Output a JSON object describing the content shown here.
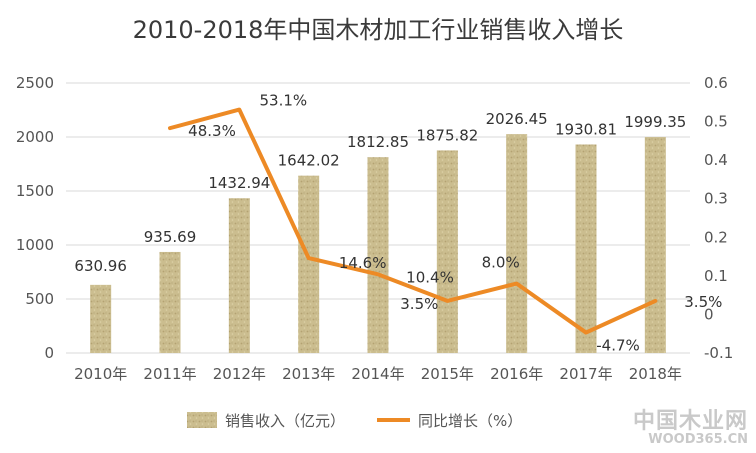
{
  "chart_data": {
    "type": "bar",
    "title": "2010-2018年中国木材加工行业销售收入增长",
    "categories": [
      "2010年",
      "2011年",
      "2012年",
      "2013年",
      "2014年",
      "2015年",
      "2016年",
      "2017年",
      "2018年"
    ],
    "series": [
      {
        "name": "销售收入（亿元）",
        "type": "bar",
        "axis": "left",
        "values": [
          630.96,
          935.69,
          1432.94,
          1642.02,
          1812.85,
          1875.82,
          2026.45,
          1930.81,
          1999.35
        ],
        "labels": [
          "630.96",
          "935.69",
          "1432.94",
          "1642.02",
          "1812.85",
          "1875.82",
          "2026.45",
          "1930.81",
          "1999.35"
        ],
        "color": "#c8b98a"
      },
      {
        "name": "同比增长（%）",
        "type": "line",
        "axis": "right",
        "values": [
          null,
          0.483,
          0.531,
          0.146,
          0.104,
          0.035,
          0.08,
          -0.047,
          0.035
        ],
        "labels": [
          "",
          "48.3%",
          "53.1%",
          "14.6%",
          "10.4%",
          "3.5%",
          "8.0%",
          "-4.7%",
          "3.5%"
        ],
        "color": "#ed8a25"
      }
    ],
    "y_left": {
      "min": 0,
      "max": 2500,
      "ticks": [
        "0",
        "500",
        "1000",
        "1500",
        "2000",
        "2500"
      ]
    },
    "y_right": {
      "min": -0.1,
      "max": 0.6,
      "ticks": [
        "-0.1",
        "0",
        "0.1",
        "0.2",
        "0.3",
        "0.4",
        "0.5",
        "0.6"
      ]
    },
    "grid": true,
    "legend": "bottom"
  },
  "watermark": {
    "line1": "中国木业网",
    "line2": "WOOD365.CN"
  }
}
